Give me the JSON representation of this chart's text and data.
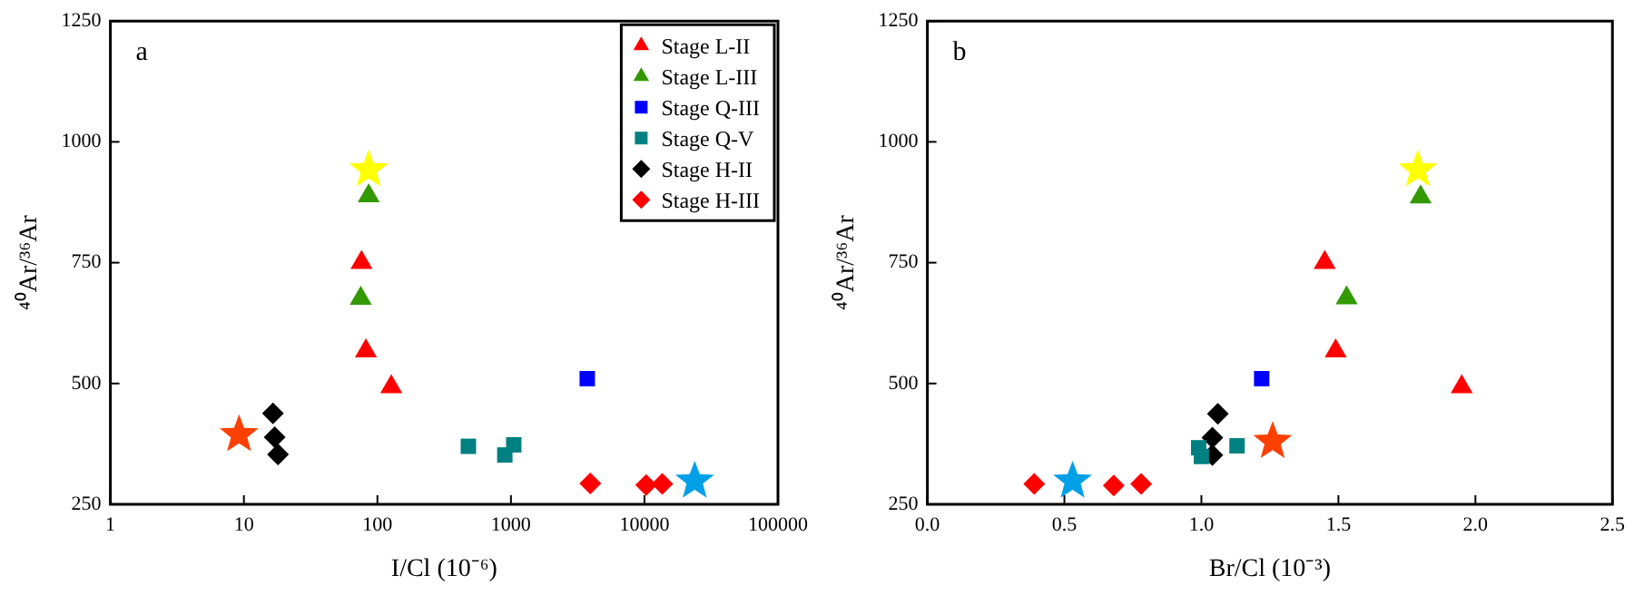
{
  "chart_data": [
    {
      "type": "scatter",
      "title": "a",
      "xlabel": "I/Cl (10⁻⁶)",
      "ylabel": "⁴⁰Ar/³⁶Ar",
      "log": "x",
      "xlim": [
        1,
        100000
      ],
      "xticks": [
        1,
        10,
        100,
        1000,
        10000,
        100000
      ],
      "ylim": [
        250,
        1250
      ],
      "yticks": [
        250,
        500,
        750,
        1000,
        1250
      ],
      "grid": false,
      "legend": "top right",
      "series": [
        {
          "name": "Stage L-II",
          "color": "#ff0000",
          "marker": "triangle",
          "x": [
            76,
            82,
            127
          ],
          "values": [
            750,
            567,
            493
          ]
        },
        {
          "name": "Stage L-III",
          "color": "#339900",
          "marker": "triangle",
          "x": [
            86,
            75
          ],
          "values": [
            888,
            676
          ]
        },
        {
          "name": "Stage Q-III",
          "color": "#0000ff",
          "marker": "square",
          "x": [
            3730
          ],
          "values": [
            510
          ]
        },
        {
          "name": "Stage Q-V",
          "color": "#008080",
          "marker": "square",
          "x": [
            480,
            900,
            1050
          ],
          "values": [
            370,
            352,
            373
          ]
        },
        {
          "name": "Stage H-II",
          "color": "#000000",
          "marker": "diamond",
          "x": [
            16.5,
            17,
            18
          ],
          "values": [
            438,
            389,
            353
          ]
        },
        {
          "name": "Stage H-III",
          "color": "#ff0000",
          "marker": "diamond",
          "x": [
            3930,
            10300,
            13600
          ],
          "values": [
            293,
            290,
            292
          ]
        },
        {
          "color": "#ffff00",
          "marker": "star",
          "x": [
            86
          ],
          "values": [
            942
          ]
        },
        {
          "color": "#ff4000",
          "marker": "star",
          "x": [
            9.2
          ],
          "values": [
            394
          ]
        },
        {
          "color": "#00a0e9",
          "marker": "star",
          "x": [
            23800
          ],
          "values": [
            298
          ]
        }
      ]
    },
    {
      "type": "scatter",
      "title": "b",
      "xlabel": "Br/Cl (10⁻³)",
      "ylabel": "⁴⁰Ar/³⁶Ar",
      "xlim": [
        0,
        2.5
      ],
      "xticks": [
        {
          "value": 0,
          "label": "0.0"
        },
        0.5,
        {
          "value": 1,
          "label": "1.0"
        },
        1.5,
        {
          "value": 2,
          "label": "2.0"
        },
        2.5
      ],
      "ylim": [
        250,
        1250
      ],
      "yticks": [
        250,
        500,
        750,
        1000,
        1250
      ],
      "grid": false,
      "legend": false,
      "series": [
        {
          "color": "#ff0000",
          "marker": "triangle",
          "x": [
            1.45,
            1.49,
            1.95
          ],
          "values": [
            750,
            567,
            493
          ]
        },
        {
          "color": "#339900",
          "marker": "triangle",
          "x": [
            1.8,
            1.53
          ],
          "values": [
            886,
            677
          ]
        },
        {
          "color": "#0000ff",
          "marker": "square",
          "x": [
            1.22
          ],
          "values": [
            510
          ]
        },
        {
          "color": "#008080",
          "marker": "square",
          "x": [
            0.99,
            1.0,
            1.13
          ],
          "values": [
            367,
            349,
            371
          ]
        },
        {
          "color": "#000000",
          "marker": "diamond",
          "x": [
            1.06,
            1.04,
            1.04
          ],
          "values": [
            437,
            388,
            352
          ]
        },
        {
          "color": "#ff0000",
          "marker": "diamond",
          "x": [
            0.39,
            0.68,
            0.78
          ],
          "values": [
            292,
            289,
            292
          ]
        },
        {
          "color": "#ffff00",
          "marker": "star",
          "x": [
            1.79
          ],
          "values": [
            942
          ]
        },
        {
          "color": "#ff4000",
          "marker": "star",
          "x": [
            1.26
          ],
          "values": [
            380
          ]
        },
        {
          "color": "#00a0e9",
          "marker": "star",
          "x": [
            0.53
          ],
          "values": [
            298
          ]
        }
      ]
    }
  ]
}
